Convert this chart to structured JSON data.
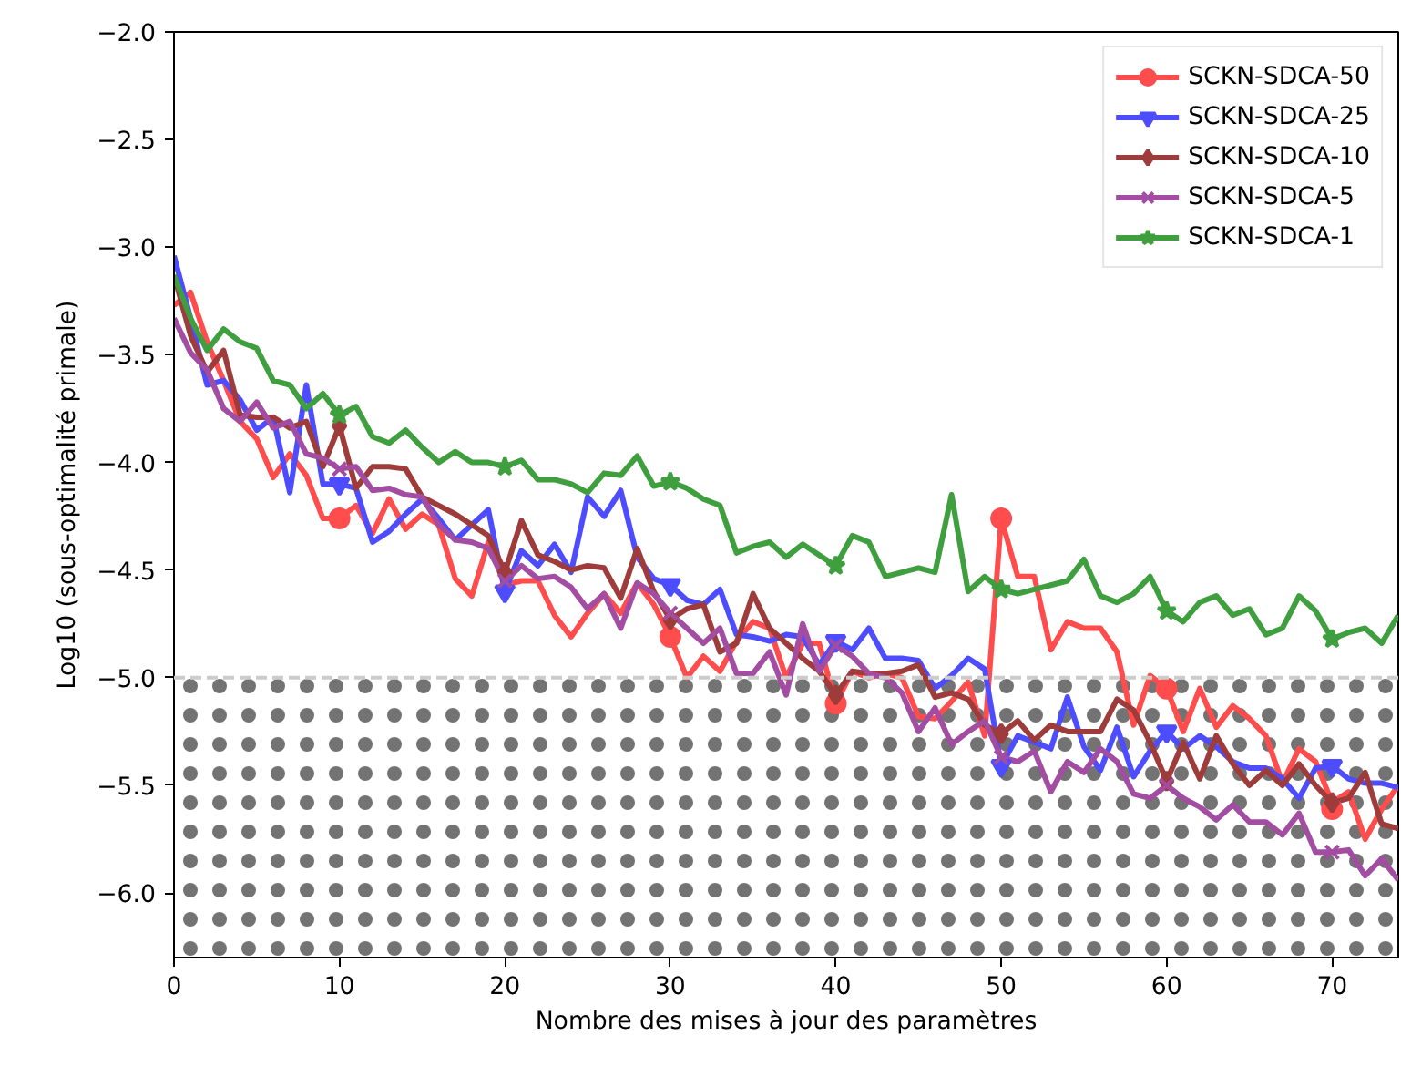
{
  "chart_data": {
    "type": "line",
    "xlabel": "Nombre des mises à jour des paramètres",
    "ylabel": "Log10 (sous-optimalité primale)",
    "x": [
      0,
      1,
      2,
      3,
      4,
      5,
      6,
      7,
      8,
      9,
      10,
      11,
      12,
      13,
      14,
      15,
      16,
      17,
      18,
      19,
      20,
      21,
      22,
      23,
      24,
      25,
      26,
      27,
      28,
      29,
      30,
      31,
      32,
      33,
      34,
      35,
      36,
      37,
      38,
      39,
      40,
      41,
      42,
      43,
      44,
      45,
      46,
      47,
      48,
      49,
      50,
      51,
      52,
      53,
      54,
      55,
      56,
      57,
      58,
      59,
      60,
      61,
      62,
      63,
      64,
      65,
      66,
      67,
      68,
      69,
      70,
      71,
      72,
      73,
      74
    ],
    "xlim": [
      0,
      74
    ],
    "xticks": [
      0,
      10,
      20,
      30,
      40,
      50,
      60,
      70
    ],
    "ylim": [
      -6.3,
      -2.0
    ],
    "yticks": [
      {
        "value": -2.0,
        "label": "−2.0"
      },
      {
        "value": -2.5,
        "label": "−2.5"
      },
      {
        "value": -3.0,
        "label": "−3.0"
      },
      {
        "value": -3.5,
        "label": "−3.5"
      },
      {
        "value": -4.0,
        "label": "−4.0"
      },
      {
        "value": -4.5,
        "label": "−4.5"
      },
      {
        "value": -5.0,
        "label": "−5.0"
      },
      {
        "value": -5.5,
        "label": "−5.5"
      },
      {
        "value": -6.0,
        "label": "−6.0"
      }
    ],
    "grid": false,
    "legend": "top right",
    "line_style": "solid",
    "ref_lines": [
      {
        "axis": "y",
        "value": -5.0,
        "color": "#cccccc",
        "line_style": "dashed"
      }
    ],
    "bands": [
      {
        "axis": "y",
        "from": -6.3,
        "to": -5.0,
        "color": "#000000"
      }
    ],
    "series": [
      {
        "name": "SCKN-SDCA-50",
        "color": "#ff4d4d",
        "values": [
          -3.27,
          -3.21,
          -3.44,
          -3.62,
          -3.81,
          -3.89,
          -4.07,
          -3.96,
          -4.06,
          -4.26,
          -4.26,
          -4.2,
          -4.33,
          -4.17,
          -4.31,
          -4.24,
          -4.29,
          -4.54,
          -4.62,
          -4.37,
          -4.57,
          -4.55,
          -4.55,
          -4.71,
          -4.81,
          -4.7,
          -4.61,
          -4.7,
          -4.56,
          -4.66,
          -4.81,
          -5.0,
          -4.9,
          -4.97,
          -4.83,
          -4.74,
          -4.77,
          -5.0,
          -4.84,
          -4.84,
          -5.12,
          -4.97,
          -5.0,
          -4.98,
          -5.0,
          -5.18,
          -5.19,
          -5.11,
          -5.02,
          -5.27,
          -4.26,
          -4.53,
          -4.53,
          -4.87,
          -4.74,
          -4.77,
          -4.77,
          -4.88,
          -5.22,
          -4.99,
          -5.05,
          -5.25,
          -5.05,
          -5.23,
          -5.13,
          -5.19,
          -5.27,
          -5.49,
          -5.33,
          -5.39,
          -5.58,
          -5.53,
          -5.75,
          -5.61,
          -5.5
        ]
      },
      {
        "name": "SCKN-SDCA-25",
        "color": "#4d4dff",
        "values": [
          -3.04,
          -3.33,
          -3.64,
          -3.62,
          -3.71,
          -3.85,
          -3.79,
          -4.14,
          -3.64,
          -4.1,
          -4.1,
          -4.12,
          -4.37,
          -4.32,
          -4.24,
          -4.17,
          -4.26,
          -4.36,
          -4.29,
          -4.22,
          -4.6,
          -4.41,
          -4.48,
          -4.38,
          -4.51,
          -4.16,
          -4.25,
          -4.13,
          -4.44,
          -4.54,
          -4.57,
          -4.64,
          -4.66,
          -4.59,
          -4.8,
          -4.81,
          -4.83,
          -4.8,
          -4.81,
          -4.94,
          -4.83,
          -4.87,
          -4.77,
          -4.91,
          -4.91,
          -4.92,
          -5.05,
          -4.99,
          -4.91,
          -4.96,
          -5.41,
          -5.27,
          -5.3,
          -5.33,
          -5.09,
          -5.32,
          -5.43,
          -5.23,
          -5.46,
          -5.34,
          -5.25,
          -5.33,
          -5.27,
          -5.32,
          -5.39,
          -5.42,
          -5.42,
          -5.47,
          -5.56,
          -5.42,
          -5.41,
          -5.47,
          -5.49,
          -5.49,
          -5.51
        ]
      },
      {
        "name": "SCKN-SDCA-10",
        "color": "#9e3b3b",
        "values": [
          -3.13,
          -3.41,
          -3.58,
          -3.48,
          -3.78,
          -3.79,
          -3.79,
          -3.84,
          -3.81,
          -4.02,
          -3.83,
          -4.12,
          -4.02,
          -4.02,
          -4.03,
          -4.16,
          -4.2,
          -4.24,
          -4.29,
          -4.34,
          -4.51,
          -4.27,
          -4.43,
          -4.46,
          -4.5,
          -4.48,
          -4.49,
          -4.63,
          -4.4,
          -4.6,
          -4.73,
          -4.68,
          -4.66,
          -4.88,
          -4.84,
          -4.61,
          -4.77,
          -4.84,
          -4.91,
          -4.97,
          -5.08,
          -4.97,
          -4.98,
          -4.98,
          -4.97,
          -4.94,
          -5.09,
          -5.07,
          -5.1,
          -5.22,
          -5.26,
          -5.2,
          -5.29,
          -5.22,
          -5.25,
          -5.25,
          -5.25,
          -5.1,
          -5.15,
          -5.3,
          -5.48,
          -5.3,
          -5.47,
          -5.27,
          -5.4,
          -5.5,
          -5.43,
          -5.5,
          -5.4,
          -5.5,
          -5.58,
          -5.56,
          -5.44,
          -5.68,
          -5.7
        ]
      },
      {
        "name": "SCKN-SDCA-5",
        "color": "#a24da2",
        "values": [
          -3.33,
          -3.49,
          -3.57,
          -3.75,
          -3.81,
          -3.72,
          -3.84,
          -3.81,
          -3.96,
          -3.98,
          -4.03,
          -4.02,
          -4.13,
          -4.12,
          -4.15,
          -4.16,
          -4.29,
          -4.36,
          -4.37,
          -4.4,
          -4.55,
          -4.48,
          -4.54,
          -4.53,
          -4.58,
          -4.68,
          -4.61,
          -4.77,
          -4.56,
          -4.61,
          -4.7,
          -4.77,
          -4.84,
          -4.77,
          -4.98,
          -4.98,
          -4.88,
          -5.08,
          -4.75,
          -4.97,
          -4.85,
          -4.9,
          -4.98,
          -5.0,
          -5.07,
          -5.25,
          -5.14,
          -5.31,
          -5.25,
          -5.2,
          -5.37,
          -5.39,
          -5.34,
          -5.53,
          -5.39,
          -5.44,
          -5.33,
          -5.39,
          -5.54,
          -5.56,
          -5.5,
          -5.56,
          -5.6,
          -5.66,
          -5.59,
          -5.67,
          -5.67,
          -5.73,
          -5.63,
          -5.81,
          -5.81,
          -5.8,
          -5.92,
          -5.84,
          -5.94
        ]
      },
      {
        "name": "SCKN-SDCA-1",
        "color": "#3f9f3f",
        "values": [
          -3.13,
          -3.33,
          -3.48,
          -3.38,
          -3.44,
          -3.47,
          -3.62,
          -3.64,
          -3.75,
          -3.68,
          -3.78,
          -3.74,
          -3.88,
          -3.91,
          -3.85,
          -3.93,
          -4.0,
          -3.95,
          -4.0,
          -4.0,
          -4.02,
          -3.99,
          -4.08,
          -4.08,
          -4.1,
          -4.14,
          -4.05,
          -4.06,
          -3.97,
          -4.11,
          -4.09,
          -4.12,
          -4.17,
          -4.2,
          -4.42,
          -4.39,
          -4.37,
          -4.44,
          -4.38,
          -4.43,
          -4.48,
          -4.34,
          -4.37,
          -4.53,
          -4.51,
          -4.49,
          -4.51,
          -4.15,
          -4.6,
          -4.53,
          -4.59,
          -4.61,
          -4.59,
          -4.57,
          -4.55,
          -4.45,
          -4.62,
          -4.65,
          -4.61,
          -4.53,
          -4.69,
          -4.74,
          -4.65,
          -4.62,
          -4.71,
          -4.68,
          -4.8,
          -4.77,
          -4.62,
          -4.69,
          -4.82,
          -4.79,
          -4.77,
          -4.84,
          -4.71
        ]
      },
      {
        "type": "scatter",
        "color": "#ff4d4d",
        "marker": "circle",
        "x": [
          10,
          20,
          30,
          40,
          50,
          60,
          70
        ],
        "values": [
          -4.26,
          null,
          -4.81,
          -5.12,
          -4.26,
          -5.05,
          -5.61
        ]
      },
      {
        "type": "scatter",
        "color": "#4d4dff",
        "marker": "triangle",
        "x": [
          10,
          20,
          30,
          40,
          50,
          60,
          70
        ],
        "values": [
          -4.1,
          -4.6,
          -4.57,
          -4.83,
          -5.41,
          -5.25,
          -5.41
        ]
      },
      {
        "type": "scatter",
        "color": "#9e3b3b",
        "marker": "diamond",
        "x": [
          10,
          20,
          30,
          40,
          50,
          60,
          70
        ],
        "values": [
          -3.83,
          -4.51,
          -4.73,
          -5.08,
          -5.26,
          -5.48,
          -5.58
        ]
      },
      {
        "type": "scatter",
        "color": "#a24da2",
        "marker": "cross",
        "x": [
          10,
          20,
          30,
          40,
          50,
          60,
          70
        ],
        "values": [
          -4.03,
          -4.55,
          -4.7,
          -4.85,
          -5.37,
          -5.5,
          -5.81
        ]
      },
      {
        "type": "scatter",
        "color": "#3f9f3f",
        "marker": "star",
        "x": [
          10,
          20,
          30,
          40,
          50,
          60,
          70
        ],
        "values": [
          -3.78,
          -4.02,
          -4.09,
          -4.48,
          -4.59,
          -4.69,
          -4.82
        ]
      }
    ]
  }
}
